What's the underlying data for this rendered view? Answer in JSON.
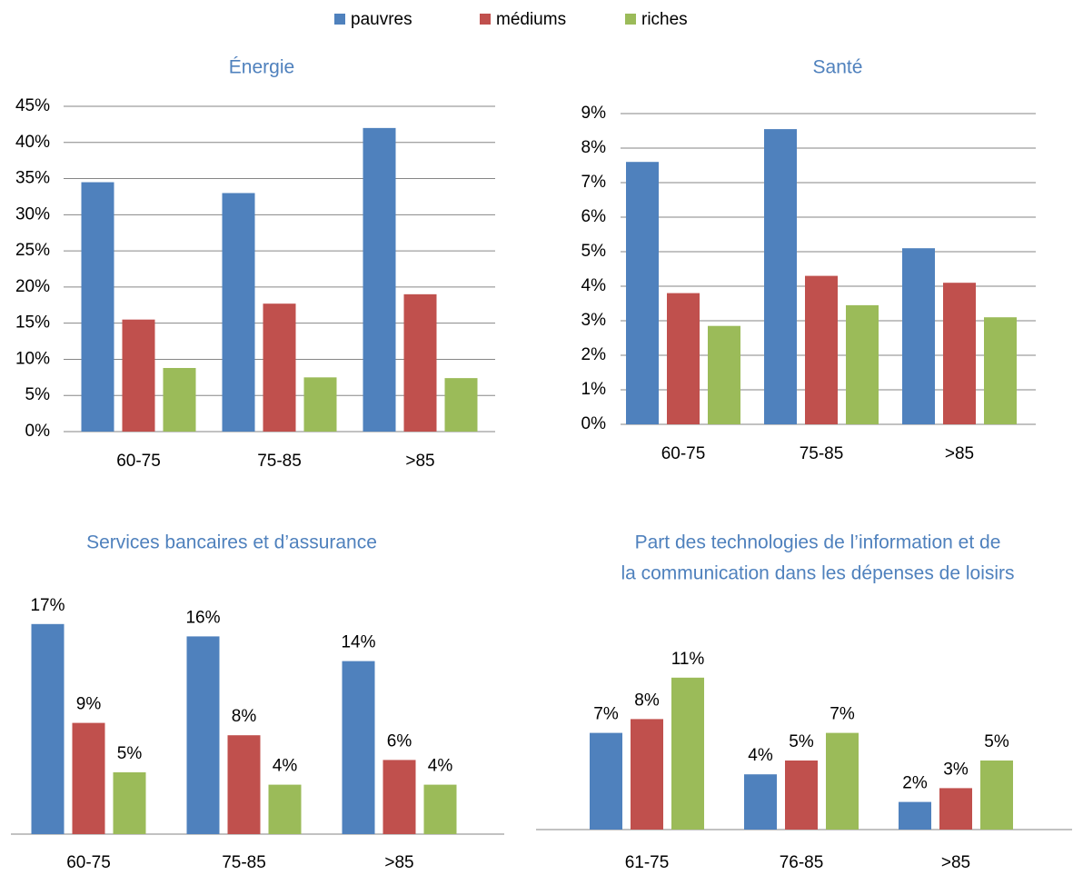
{
  "legend": [
    {
      "name": "pauvres",
      "color": "#4f81bd"
    },
    {
      "name": "médiums",
      "color": "#c0504d"
    },
    {
      "name": "riches",
      "color": "#9bbb59"
    }
  ],
  "chart_data": [
    {
      "type": "bar",
      "title": "Énergie",
      "categories": [
        "60-75",
        "75-85",
        ">85"
      ],
      "series": [
        {
          "values": [
            34.5,
            33.0,
            42.0
          ]
        },
        {
          "values": [
            15.5,
            17.7,
            19.0
          ]
        },
        {
          "values": [
            8.8,
            7.5,
            7.4
          ]
        }
      ],
      "ylim": [
        0,
        45
      ],
      "yticks": [
        {
          "value": 0,
          "label": "0%"
        },
        {
          "value": 5,
          "label": "5%"
        },
        {
          "value": 10,
          "label": "10%"
        },
        {
          "value": 15,
          "label": "15%"
        },
        {
          "value": 20,
          "label": "20%"
        },
        {
          "value": 25,
          "label": "25%"
        },
        {
          "value": 30,
          "label": "30%"
        },
        {
          "value": 35,
          "label": "35%"
        },
        {
          "value": 40,
          "label": "40%"
        },
        {
          "value": 45,
          "label": "45%"
        }
      ],
      "grid": true
    },
    {
      "type": "bar",
      "title": "Santé",
      "categories": [
        "60-75",
        "75-85",
        ">85"
      ],
      "series": [
        {
          "values": [
            7.6,
            8.55,
            5.1
          ]
        },
        {
          "values": [
            3.8,
            4.3,
            4.1
          ]
        },
        {
          "values": [
            2.85,
            3.45,
            3.1
          ]
        }
      ],
      "ylim": [
        0,
        9
      ],
      "yticks": [
        {
          "value": 0,
          "label": "0%"
        },
        {
          "value": 1,
          "label": "1%"
        },
        {
          "value": 2,
          "label": "2%"
        },
        {
          "value": 3,
          "label": "3%"
        },
        {
          "value": 4,
          "label": "4%"
        },
        {
          "value": 5,
          "label": "5%"
        },
        {
          "value": 6,
          "label": "6%"
        },
        {
          "value": 7,
          "label": "7%"
        },
        {
          "value": 8,
          "label": "8%"
        },
        {
          "value": 9,
          "label": "9%"
        }
      ],
      "grid": true
    },
    {
      "type": "bar",
      "title": "Services bancaires et d’assurance",
      "categories": [
        "60-75",
        "75-85",
        ">85"
      ],
      "series": [
        {
          "values": [
            17,
            16,
            14
          ],
          "value_labels": [
            "17%",
            "16%",
            "14%"
          ]
        },
        {
          "values": [
            9,
            8,
            6
          ],
          "value_labels": [
            "9%",
            "8%",
            "6%"
          ]
        },
        {
          "values": [
            5,
            4,
            4
          ],
          "value_labels": [
            "5%",
            "4%",
            "4%"
          ]
        }
      ],
      "grid": false
    },
    {
      "type": "bar",
      "title": [
        "Part des technologies de l’information et de",
        "la communication dans les dépenses de loisirs"
      ],
      "categories": [
        "61-75",
        "76-85",
        ">85"
      ],
      "series": [
        {
          "values": [
            7,
            4,
            2
          ],
          "value_labels": [
            "7%",
            "4%",
            "2%"
          ]
        },
        {
          "values": [
            8,
            5,
            3
          ],
          "value_labels": [
            "8%",
            "5%",
            "3%"
          ]
        },
        {
          "values": [
            11,
            7,
            5
          ],
          "value_labels": [
            "11%",
            "7%",
            "5%"
          ]
        }
      ],
      "grid": false
    }
  ]
}
